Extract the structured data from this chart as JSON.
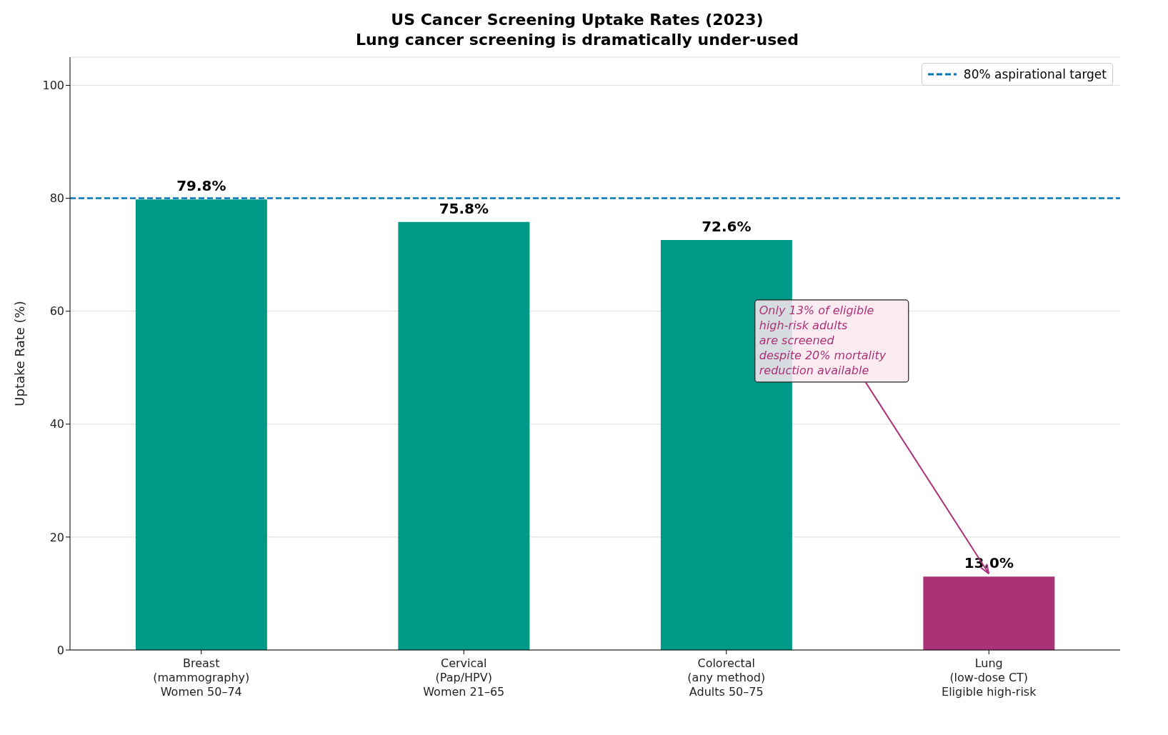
{
  "chart_data": {
    "type": "bar",
    "title": "US Cancer Screening Uptake Rates (2023)",
    "subtitle": "Lung cancer screening is dramatically under-used",
    "ylabel": "Uptake Rate (%)",
    "categories": [
      "Breast\n(mammography)\nWomen 50–74",
      "Cervical\n(Pap/HPV)\nWomen 21–65",
      "Colorectal\n(any method)\nAdults 50–75",
      "Lung\n(low-dose CT)\nEligible high-risk"
    ],
    "values": [
      79.8,
      75.8,
      72.6,
      13.0
    ],
    "colors": [
      "#009988",
      "#009988",
      "#009988",
      "#aa3377"
    ],
    "value_labels": [
      "79.8%",
      "75.8%",
      "72.6%",
      "13.0%"
    ],
    "ylim": [
      0,
      105
    ],
    "yticks": [
      0,
      20,
      40,
      60,
      80,
      100
    ],
    "grid": "y",
    "legend": "top right",
    "ref_lines": [
      {
        "axis": "y",
        "value": 80,
        "label": "80% aspirational target",
        "color": "#0077bb",
        "line_style": "dashed"
      }
    ],
    "annotations": [
      {
        "text": "Only 13% of eligible\nhigh-risk adults\nare screened\ndespite 20% mortality\nreduction available",
        "x": "Lung\n(low-dose CT)\nEligible high-risk",
        "y": 13.0
      }
    ]
  }
}
